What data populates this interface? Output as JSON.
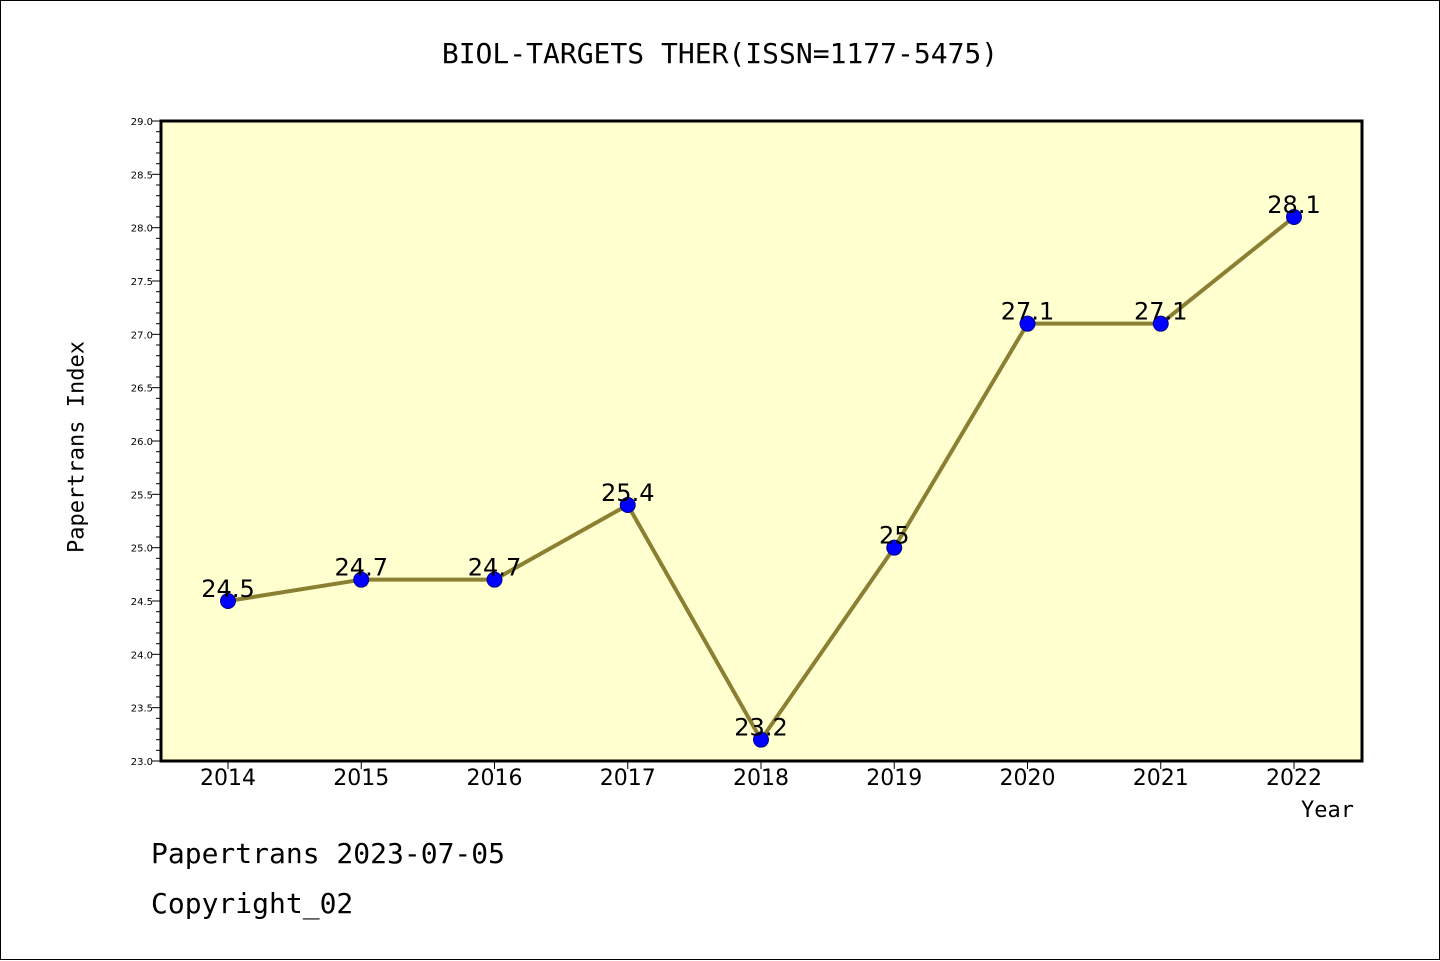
{
  "chart_data": {
    "type": "line",
    "title": "BIOL-TARGETS THER(ISSN=1177-5475)",
    "xlabel": "Year",
    "ylabel": "Papertrans Index",
    "categories": [
      "2014",
      "2015",
      "2016",
      "2017",
      "2018",
      "2019",
      "2020",
      "2021",
      "2022"
    ],
    "series": [
      {
        "values": [
          24.5,
          24.7,
          24.7,
          25.4,
          23.2,
          25.0,
          27.1,
          27.1,
          28.1
        ],
        "data_labels": [
          "24.5",
          "24.7",
          "24.7",
          "25.4",
          "23.2",
          "25",
          "27.1",
          "27.1",
          "28.1"
        ]
      }
    ],
    "ylim": [
      23.0,
      29.0
    ],
    "y_ticks": [
      "23.0",
      "23.5",
      "24.0",
      "24.5",
      "25.0",
      "25.5",
      "26.0",
      "26.5",
      "27.0",
      "27.5",
      "28.0",
      "28.5",
      "29.0"
    ],
    "grid": false,
    "colors": {
      "plot_background": "#ffffd0",
      "line": "#8b7f32",
      "marker_fill": "#0000ff",
      "marker_edge": "#00008b"
    }
  },
  "footer": {
    "line1": "Papertrans 2023-07-05",
    "line2": "Copyright_02"
  }
}
